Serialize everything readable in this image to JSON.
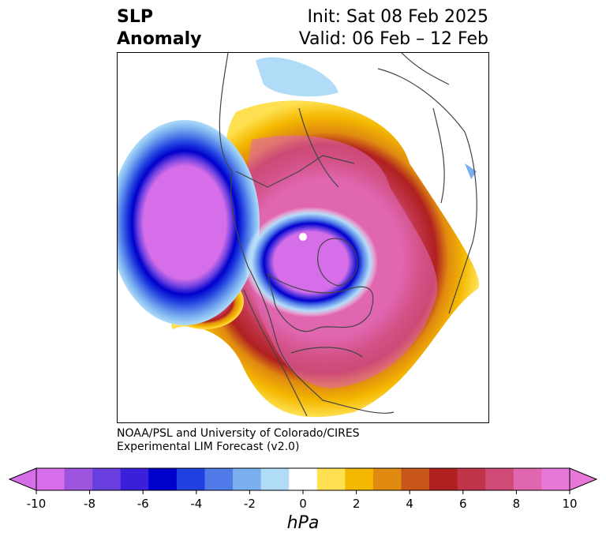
{
  "title": {
    "left_line1": "SLP",
    "left_line2": "Anomaly",
    "right_line1": "Init: Sat 08 Feb 2025",
    "right_line2": "Valid: 06 Feb – 12 Feb"
  },
  "credit": {
    "line1": "NOAA/PSL and University of Colorado/CIRES",
    "line2": "Experimental LIM Forecast (v2.0)"
  },
  "colorbar": {
    "label": "hPa",
    "ticks": [
      "-10",
      "-8",
      "-6",
      "-4",
      "-2",
      "0",
      "2",
      "4",
      "6",
      "8",
      "10"
    ],
    "colors": [
      "#d56ee8",
      "#9d55e0",
      "#6a3fe0",
      "#3a20d8",
      "#0000cc",
      "#2040e0",
      "#4f7ae8",
      "#7ab0f0",
      "#b0dcf8",
      "#ffffff",
      "#ffe050",
      "#f4b800",
      "#e08a10",
      "#c85618",
      "#b02020",
      "#c0354a",
      "#d04a78",
      "#e066b0",
      "#e878d8"
    ],
    "extend_low_color": "#d56ee8",
    "extend_high_color": "#e878d8"
  },
  "map": {
    "projection": "north-polar-stereographic",
    "field": "SLP anomaly (hPa)"
  }
}
